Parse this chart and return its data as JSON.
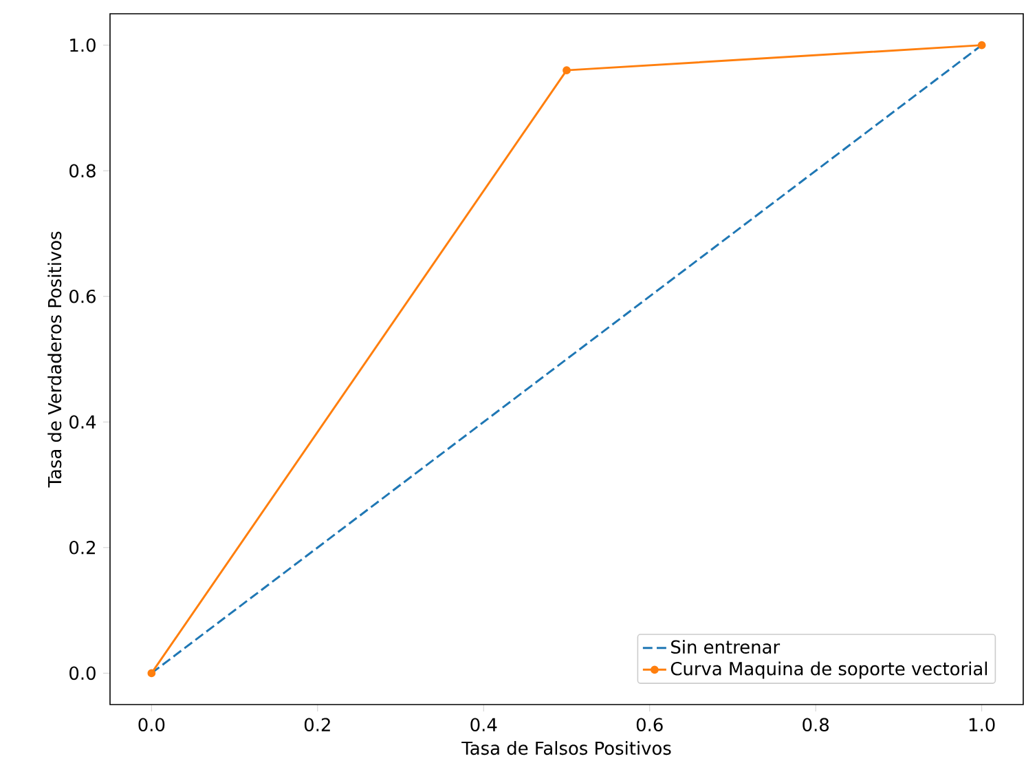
{
  "chart_data": {
    "type": "line",
    "xlabel": "Tasa de Falsos Positivos",
    "ylabel": "Tasa de Verdaderos Positivos",
    "xlim": [
      -0.05,
      1.05
    ],
    "ylim": [
      -0.05,
      1.05
    ],
    "xticks": [
      {
        "value": 0,
        "label": "0.0"
      },
      {
        "value": 0.2,
        "label": "0.2"
      },
      {
        "value": 0.4,
        "label": "0.4"
      },
      {
        "value": 0.6,
        "label": "0.6"
      },
      {
        "value": 0.8,
        "label": "0.8"
      },
      {
        "value": 1,
        "label": "1.0"
      }
    ],
    "yticks": [
      {
        "value": 0,
        "label": "0.0"
      },
      {
        "value": 0.2,
        "label": "0.2"
      },
      {
        "value": 0.4,
        "label": "0.4"
      },
      {
        "value": 0.6,
        "label": "0.6"
      },
      {
        "value": 0.8,
        "label": "0.8"
      },
      {
        "value": 1,
        "label": "1.0"
      }
    ],
    "legend": "bottom right",
    "series": [
      {
        "name": "Sin entrenar",
        "color": "#1f77b4",
        "x": [
          0,
          1
        ],
        "values": [
          0,
          1
        ],
        "line_style": "dashed",
        "marker": "none"
      },
      {
        "name": "Curva Maquina de soporte vectorial",
        "color": "#ff7f0e",
        "x": [
          0,
          0.5,
          1
        ],
        "values": [
          0,
          0.96,
          1
        ],
        "line_style": "solid",
        "marker": "circle"
      }
    ]
  }
}
